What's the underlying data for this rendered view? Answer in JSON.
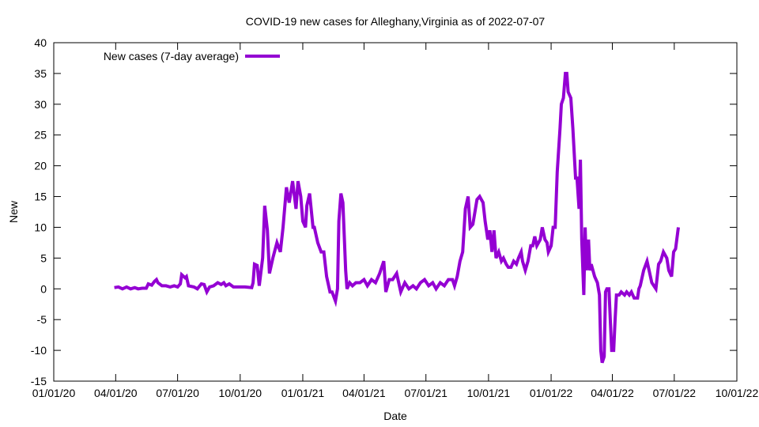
{
  "chart_data": {
    "type": "line",
    "title": "COVID-19 new cases for Alleghany,Virginia as of 2022-07-07",
    "xlabel": "Date",
    "ylabel": "New",
    "x_units": "days since 2020-01-01",
    "xlim": [
      0,
      1004
    ],
    "ylim": [
      -15,
      40
    ],
    "yticks": [
      -15,
      -10,
      -5,
      0,
      5,
      10,
      15,
      20,
      25,
      30,
      35,
      40
    ],
    "xticks": [
      {
        "day": 0,
        "label": "01/01/20"
      },
      {
        "day": 91,
        "label": "04/01/20"
      },
      {
        "day": 182,
        "label": "07/01/20"
      },
      {
        "day": 274,
        "label": "10/01/20"
      },
      {
        "day": 366,
        "label": "01/01/21"
      },
      {
        "day": 456,
        "label": "04/01/21"
      },
      {
        "day": 547,
        "label": "07/01/21"
      },
      {
        "day": 639,
        "label": "10/01/21"
      },
      {
        "day": 731,
        "label": "01/01/22"
      },
      {
        "day": 821,
        "label": "04/01/22"
      },
      {
        "day": 912,
        "label": "07/01/22"
      },
      {
        "day": 1004,
        "label": "10/01/22"
      }
    ],
    "grid": false,
    "legend_position": "top-left",
    "series": [
      {
        "name": "New cases (7-day average)",
        "color": "#9400d3",
        "points": [
          [
            89,
            0.2
          ],
          [
            95,
            0.3
          ],
          [
            101,
            0
          ],
          [
            107,
            0.3
          ],
          [
            113,
            0
          ],
          [
            119,
            0.2
          ],
          [
            124,
            0
          ],
          [
            130,
            0.1
          ],
          [
            136,
            0.1
          ],
          [
            139,
            0.8
          ],
          [
            144,
            0.6
          ],
          [
            148,
            1.2
          ],
          [
            151,
            1.5
          ],
          [
            153,
            1
          ],
          [
            159,
            0.5
          ],
          [
            165,
            0.5
          ],
          [
            171,
            0.3
          ],
          [
            177,
            0.5
          ],
          [
            182,
            0.3
          ],
          [
            186,
            0.8
          ],
          [
            188,
            2.3
          ],
          [
            193,
            1.8
          ],
          [
            195,
            2
          ],
          [
            198,
            0.5
          ],
          [
            206,
            0.3
          ],
          [
            211,
            0
          ],
          [
            217,
            0.8
          ],
          [
            221,
            0.7
          ],
          [
            225,
            -0.5
          ],
          [
            229,
            0.3
          ],
          [
            235,
            0.5
          ],
          [
            241,
            1
          ],
          [
            246,
            0.7
          ],
          [
            250,
            1
          ],
          [
            253,
            0.5
          ],
          [
            258,
            0.8
          ],
          [
            264,
            0.3
          ],
          [
            270,
            0.3
          ],
          [
            281,
            0.3
          ],
          [
            291,
            0.2
          ],
          [
            293,
            1
          ],
          [
            295,
            4
          ],
          [
            299,
            3.8
          ],
          [
            302,
            0.5
          ],
          [
            307,
            5
          ],
          [
            310,
            13.5
          ],
          [
            314,
            9.5
          ],
          [
            317,
            2.5
          ],
          [
            322,
            5
          ],
          [
            328,
            7.5
          ],
          [
            333,
            6
          ],
          [
            337,
            10
          ],
          [
            342,
            16.5
          ],
          [
            346,
            14
          ],
          [
            351,
            17.5
          ],
          [
            356,
            13
          ],
          [
            359,
            17.5
          ],
          [
            363,
            15
          ],
          [
            366,
            11
          ],
          [
            370,
            10
          ],
          [
            372,
            13.5
          ],
          [
            376,
            15.5
          ],
          [
            381,
            10
          ],
          [
            383,
            10
          ],
          [
            388,
            7.5
          ],
          [
            393,
            6
          ],
          [
            397,
            6
          ],
          [
            401,
            2
          ],
          [
            406,
            -0.5
          ],
          [
            409,
            -0.5
          ],
          [
            414,
            -2
          ],
          [
            417,
            0
          ],
          [
            419,
            11
          ],
          [
            422,
            15.5
          ],
          [
            425,
            14
          ],
          [
            429,
            3
          ],
          [
            431,
            0
          ],
          [
            435,
            1
          ],
          [
            439,
            0.5
          ],
          [
            444,
            1
          ],
          [
            450,
            1
          ],
          [
            456,
            1.5
          ],
          [
            461,
            0.5
          ],
          [
            467,
            1.5
          ],
          [
            473,
            1
          ],
          [
            479,
            2.5
          ],
          [
            485,
            4.5
          ],
          [
            488,
            -0.5
          ],
          [
            493,
            1.5
          ],
          [
            498,
            1.5
          ],
          [
            504,
            2.5
          ],
          [
            510,
            -0.5
          ],
          [
            516,
            1
          ],
          [
            522,
            0
          ],
          [
            528,
            0.5
          ],
          [
            533,
            0
          ],
          [
            539,
            1
          ],
          [
            545,
            1.5
          ],
          [
            551,
            0.5
          ],
          [
            557,
            1
          ],
          [
            562,
            0
          ],
          [
            568,
            1
          ],
          [
            574,
            0.5
          ],
          [
            580,
            1.5
          ],
          [
            586,
            1.5
          ],
          [
            589,
            0.5
          ],
          [
            593,
            2
          ],
          [
            597,
            4.5
          ],
          [
            601,
            6
          ],
          [
            605,
            13
          ],
          [
            609,
            15
          ],
          [
            612,
            10
          ],
          [
            616,
            10.5
          ],
          [
            622,
            14.5
          ],
          [
            626,
            15
          ],
          [
            631,
            14
          ],
          [
            634,
            11
          ],
          [
            638,
            8
          ],
          [
            641,
            9.5
          ],
          [
            644,
            6
          ],
          [
            647,
            9.5
          ],
          [
            650,
            5
          ],
          [
            654,
            6
          ],
          [
            658,
            4.5
          ],
          [
            661,
            5
          ],
          [
            665,
            4
          ],
          [
            668,
            3.5
          ],
          [
            672,
            3.5
          ],
          [
            676,
            4.5
          ],
          [
            680,
            4
          ],
          [
            683,
            5
          ],
          [
            687,
            6
          ],
          [
            689,
            4.5
          ],
          [
            693,
            3
          ],
          [
            697,
            4.5
          ],
          [
            701,
            7
          ],
          [
            704,
            7
          ],
          [
            707,
            8.5
          ],
          [
            710,
            7
          ],
          [
            715,
            8
          ],
          [
            718,
            10
          ],
          [
            722,
            8
          ],
          [
            725,
            7.5
          ],
          [
            727,
            6
          ],
          [
            731,
            7
          ],
          [
            734,
            10
          ],
          [
            737,
            10
          ],
          [
            740,
            19
          ],
          [
            744,
            26
          ],
          [
            746,
            30
          ],
          [
            749,
            31
          ],
          [
            752,
            35
          ],
          [
            754,
            35
          ],
          [
            756,
            32
          ],
          [
            760,
            31
          ],
          [
            763,
            26
          ],
          [
            767,
            18
          ],
          [
            769,
            18
          ],
          [
            772,
            13
          ],
          [
            774,
            21
          ],
          [
            776,
            8
          ],
          [
            779,
            -1
          ],
          [
            781,
            10
          ],
          [
            783,
            3
          ],
          [
            786,
            8
          ],
          [
            788,
            3
          ],
          [
            790,
            4
          ],
          [
            795,
            2
          ],
          [
            799,
            1
          ],
          [
            802,
            -1
          ],
          [
            804,
            -10
          ],
          [
            806,
            -12
          ],
          [
            809,
            -11
          ],
          [
            811,
            -0.5
          ],
          [
            813,
            0
          ],
          [
            816,
            0
          ],
          [
            818,
            -5
          ],
          [
            820,
            -10
          ],
          [
            823,
            -10
          ],
          [
            825,
            -5
          ],
          [
            827,
            -1
          ],
          [
            831,
            -1
          ],
          [
            834,
            -0.5
          ],
          [
            839,
            -1
          ],
          [
            842,
            -0.5
          ],
          [
            846,
            -1
          ],
          [
            849,
            -0.5
          ],
          [
            853,
            -1.5
          ],
          [
            858,
            -1.5
          ],
          [
            860,
            0
          ],
          [
            862,
            0.5
          ],
          [
            867,
            3
          ],
          [
            872,
            4.5
          ],
          [
            875,
            3
          ],
          [
            879,
            1
          ],
          [
            882,
            0.5
          ],
          [
            885,
            0
          ],
          [
            889,
            4
          ],
          [
            892,
            4.5
          ],
          [
            896,
            6
          ],
          [
            901,
            5
          ],
          [
            904,
            3
          ],
          [
            908,
            2
          ],
          [
            911,
            6
          ],
          [
            914,
            6.5
          ],
          [
            918,
            10
          ]
        ]
      }
    ]
  }
}
